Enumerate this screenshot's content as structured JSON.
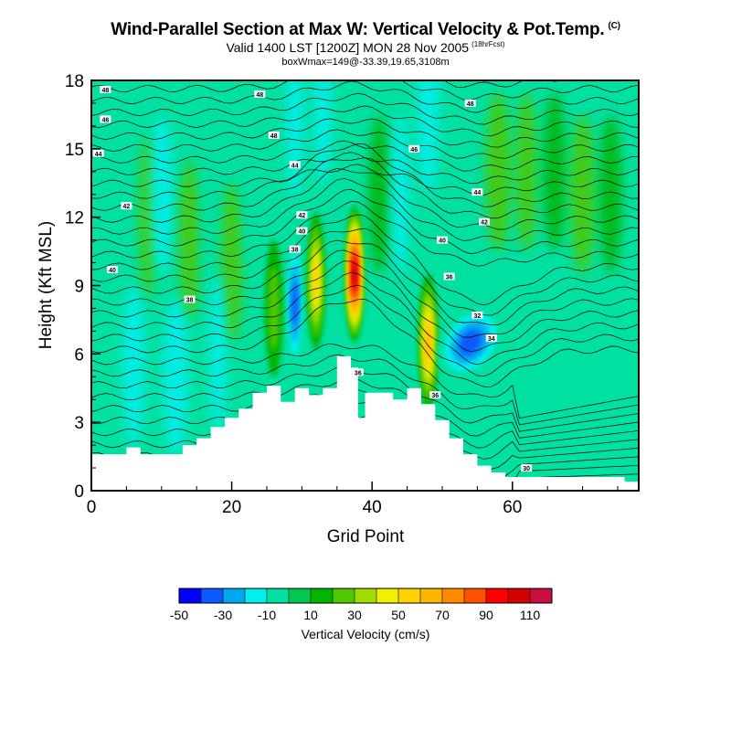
{
  "header": {
    "title": "Wind-Parallel Section at Max W: Vertical Velocity & Pot.Temp.",
    "copyright_mark": "(C)",
    "valid": "Valid 1400 LST [1200Z] MON 28 Nov 2005",
    "forecast": "(18hrFcst)",
    "boxinfo": "boxWmax=149@-33.39,19.65,3108m"
  },
  "colors": {
    "contour_levels": [
      -50,
      -40,
      -30,
      -20,
      -10,
      0,
      10,
      20,
      30,
      40,
      50,
      60,
      70,
      80,
      90,
      100,
      110,
      120
    ],
    "palette": [
      "#0000ff",
      "#0a5aff",
      "#00a8f0",
      "#00f0f0",
      "#00e0a0",
      "#00c850",
      "#00b400",
      "#50c800",
      "#a0dc00",
      "#f0f000",
      "#ffd200",
      "#ffb400",
      "#ff8c00",
      "#ff5000",
      "#ff0000",
      "#d20000",
      "#c81040"
    ]
  },
  "chart_data": {
    "type": "heatmap",
    "xlabel": "Grid Point",
    "ylabel": "Height (Kft MSL)",
    "xlim": [
      0,
      78
    ],
    "ylim": [
      0,
      18
    ],
    "xticks": [
      0,
      20,
      40,
      60
    ],
    "yticks": [
      0,
      3,
      6,
      9,
      12,
      15,
      18
    ],
    "colorbar": {
      "label": "Vertical Velocity (cm/s)",
      "tick_labels": [
        "-50",
        "-30",
        "-10",
        "10",
        "30",
        "50",
        "70",
        "90",
        "110"
      ]
    },
    "terrain_kft": [
      [
        0,
        1.6
      ],
      [
        5,
        1.6
      ],
      [
        5,
        1.9
      ],
      [
        7,
        1.9
      ],
      [
        7,
        1.6
      ],
      [
        13,
        1.6
      ],
      [
        13,
        2.0
      ],
      [
        15,
        2.0
      ],
      [
        15,
        2.3
      ],
      [
        17,
        2.3
      ],
      [
        17,
        2.8
      ],
      [
        19,
        2.8
      ],
      [
        19,
        3.2
      ],
      [
        21,
        3.2
      ],
      [
        21,
        3.6
      ],
      [
        23,
        3.6
      ],
      [
        23,
        4.3
      ],
      [
        25,
        4.3
      ],
      [
        25,
        4.6
      ],
      [
        27,
        4.6
      ],
      [
        27,
        3.9
      ],
      [
        29,
        3.9
      ],
      [
        29,
        4.5
      ],
      [
        31,
        4.5
      ],
      [
        31,
        4.2
      ],
      [
        33,
        4.2
      ],
      [
        33,
        4.5
      ],
      [
        35,
        4.5
      ],
      [
        35,
        5.9
      ],
      [
        37,
        5.9
      ],
      [
        37,
        5.4
      ],
      [
        38,
        5.4
      ],
      [
        38,
        3.2
      ],
      [
        39,
        3.2
      ],
      [
        39,
        4.3
      ],
      [
        43,
        4.3
      ],
      [
        43,
        4.0
      ],
      [
        45,
        4.0
      ],
      [
        45,
        4.5
      ],
      [
        47,
        4.5
      ],
      [
        47,
        3.8
      ],
      [
        49,
        3.8
      ],
      [
        49,
        3.1
      ],
      [
        51,
        3.1
      ],
      [
        51,
        2.3
      ],
      [
        53,
        2.3
      ],
      [
        53,
        1.6
      ],
      [
        55,
        1.6
      ],
      [
        55,
        1.1
      ],
      [
        57,
        1.1
      ],
      [
        57,
        0.8
      ],
      [
        59,
        0.8
      ],
      [
        59,
        0.6
      ],
      [
        76,
        0.6
      ],
      [
        76,
        0.4
      ],
      [
        78,
        0.4
      ]
    ],
    "velocity_cells": [
      {
        "x": 29,
        "y": 8.2,
        "value": -45
      },
      {
        "x": 32,
        "y": 9.2,
        "value": 55
      },
      {
        "x": 37.5,
        "y": 9.5,
        "value": 115
      },
      {
        "x": 26,
        "y": 8.0,
        "value": 25
      },
      {
        "x": 48,
        "y": 6.5,
        "value": 60
      },
      {
        "x": 54,
        "y": 6.5,
        "value": -40
      }
    ],
    "theta_contour_labels": [
      {
        "x": 2,
        "y": 17.6,
        "text": "48"
      },
      {
        "x": 24,
        "y": 17.4,
        "text": "48"
      },
      {
        "x": 54,
        "y": 17.0,
        "text": "48"
      },
      {
        "x": 2,
        "y": 16.3,
        "text": "46"
      },
      {
        "x": 26,
        "y": 15.6,
        "text": "48"
      },
      {
        "x": 46,
        "y": 15.0,
        "text": "46"
      },
      {
        "x": 1,
        "y": 14.8,
        "text": "44"
      },
      {
        "x": 29,
        "y": 14.3,
        "text": "44"
      },
      {
        "x": 55,
        "y": 13.1,
        "text": "44"
      },
      {
        "x": 5,
        "y": 12.5,
        "text": "42"
      },
      {
        "x": 30,
        "y": 12.1,
        "text": "42"
      },
      {
        "x": 56,
        "y": 11.8,
        "text": "42"
      },
      {
        "x": 30,
        "y": 11.4,
        "text": "40"
      },
      {
        "x": 50,
        "y": 11.0,
        "text": "40"
      },
      {
        "x": 29,
        "y": 10.6,
        "text": "38"
      },
      {
        "x": 3,
        "y": 9.7,
        "text": "40"
      },
      {
        "x": 51,
        "y": 9.4,
        "text": "36"
      },
      {
        "x": 14,
        "y": 8.4,
        "text": "38"
      },
      {
        "x": 55,
        "y": 7.7,
        "text": "32"
      },
      {
        "x": 57,
        "y": 6.7,
        "text": "34"
      },
      {
        "x": 38,
        "y": 5.2,
        "text": "36"
      },
      {
        "x": 49,
        "y": 4.2,
        "text": "36"
      },
      {
        "x": 62,
        "y": 1.0,
        "text": "30"
      }
    ]
  }
}
